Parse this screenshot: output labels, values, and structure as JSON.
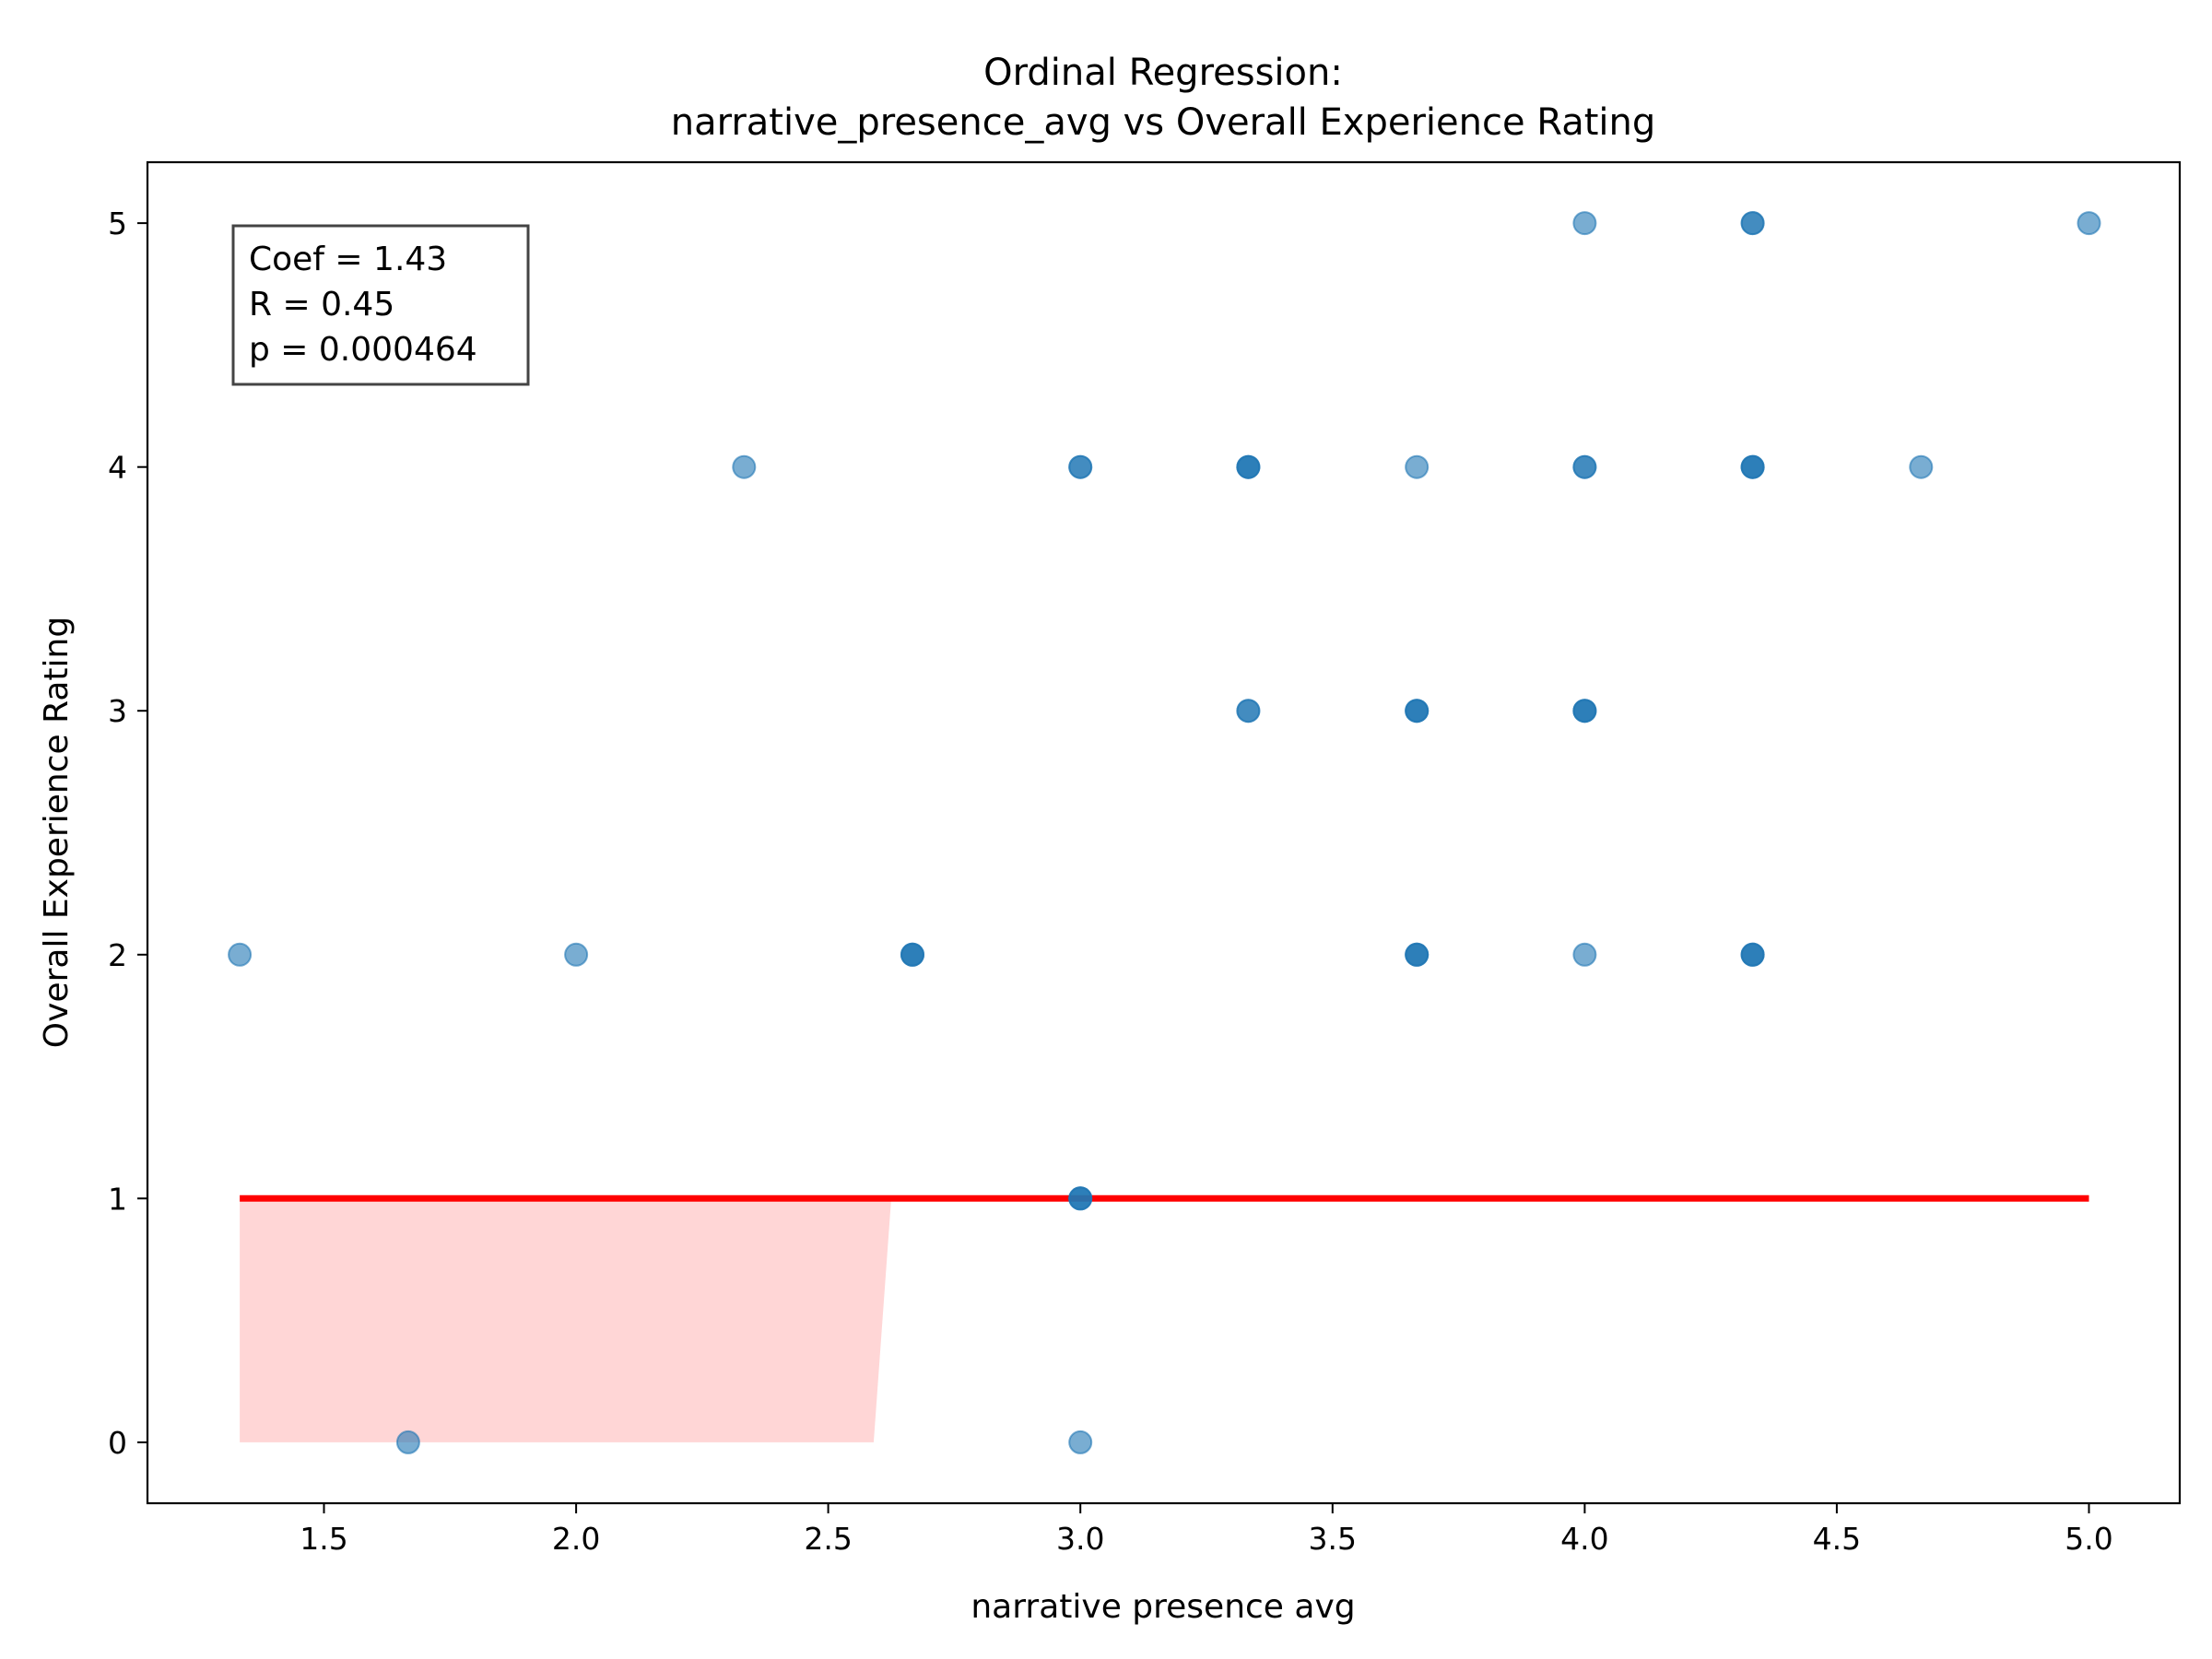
{
  "chart_data": {
    "type": "scatter",
    "title_lines": [
      "Ordinal Regression:",
      "narrative_presence_avg vs Overall Experience Rating"
    ],
    "xlabel": "narrative presence avg",
    "ylabel": "Overall Experience Rating",
    "xlim": [
      1.15,
      5.18
    ],
    "ylim": [
      -0.25,
      5.25
    ],
    "xticks": [
      1.5,
      2.0,
      2.5,
      3.0,
      3.5,
      4.0,
      4.5,
      5.0
    ],
    "xtick_labels": [
      "1.5",
      "2.0",
      "2.5",
      "3.0",
      "3.5",
      "4.0",
      "4.5",
      "5.0"
    ],
    "yticks": [
      0,
      1,
      2,
      3,
      4,
      5
    ],
    "ytick_labels": [
      "0",
      "1",
      "2",
      "3",
      "4",
      "5"
    ],
    "grid": false,
    "stats_box": {
      "position": "top-left",
      "lines": [
        "Coef = 1.43",
        "R = 0.45",
        "p = 0.000464"
      ]
    },
    "point_color": "#1f77b4",
    "point_alpha": 0.6,
    "points": [
      {
        "x": 4.0,
        "y": 5
      },
      {
        "x": 4.333,
        "y": 5
      },
      {
        "x": 4.333,
        "y": 5
      },
      {
        "x": 5.0,
        "y": 5
      },
      {
        "x": 2.333,
        "y": 4
      },
      {
        "x": 3.0,
        "y": 4
      },
      {
        "x": 3.0,
        "y": 4
      },
      {
        "x": 3.333,
        "y": 4
      },
      {
        "x": 3.333,
        "y": 4
      },
      {
        "x": 3.333,
        "y": 4
      },
      {
        "x": 3.667,
        "y": 4
      },
      {
        "x": 4.0,
        "y": 4
      },
      {
        "x": 4.0,
        "y": 4
      },
      {
        "x": 4.333,
        "y": 4
      },
      {
        "x": 4.333,
        "y": 4
      },
      {
        "x": 4.333,
        "y": 4
      },
      {
        "x": 4.667,
        "y": 4
      },
      {
        "x": 3.333,
        "y": 3
      },
      {
        "x": 3.333,
        "y": 3
      },
      {
        "x": 3.667,
        "y": 3
      },
      {
        "x": 3.667,
        "y": 3
      },
      {
        "x": 3.667,
        "y": 3
      },
      {
        "x": 4.0,
        "y": 3
      },
      {
        "x": 4.0,
        "y": 3
      },
      {
        "x": 4.0,
        "y": 3
      },
      {
        "x": 1.333,
        "y": 2
      },
      {
        "x": 2.0,
        "y": 2
      },
      {
        "x": 2.667,
        "y": 2
      },
      {
        "x": 2.667,
        "y": 2
      },
      {
        "x": 2.667,
        "y": 2
      },
      {
        "x": 3.667,
        "y": 2
      },
      {
        "x": 3.667,
        "y": 2
      },
      {
        "x": 3.667,
        "y": 2
      },
      {
        "x": 4.0,
        "y": 2
      },
      {
        "x": 4.333,
        "y": 2
      },
      {
        "x": 4.333,
        "y": 2
      },
      {
        "x": 4.333,
        "y": 2
      },
      {
        "x": 3.0,
        "y": 1
      },
      {
        "x": 3.0,
        "y": 1
      },
      {
        "x": 3.0,
        "y": 1
      },
      {
        "x": 1.667,
        "y": 0
      },
      {
        "x": 3.0,
        "y": 0
      }
    ],
    "fit_line": {
      "color": "#ff0000",
      "x": [
        1.333,
        5.0
      ],
      "y": [
        1,
        1
      ]
    },
    "confidence_band": {
      "color": "#ff9999",
      "alpha": 0.4,
      "polygon": [
        {
          "x": 1.333,
          "y": 1.0
        },
        {
          "x": 2.625,
          "y": 1.0
        },
        {
          "x": 2.59,
          "y": 0.0
        },
        {
          "x": 1.333,
          "y": 0.0
        }
      ]
    }
  }
}
